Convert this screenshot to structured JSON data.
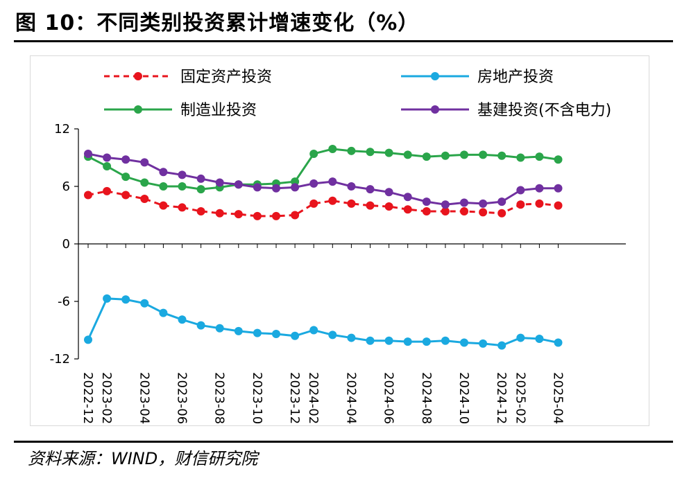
{
  "header": {
    "title": "图 10：不同类别投资累计增速变化（%）"
  },
  "footer": {
    "source": "资料来源：WIND，财信研究院"
  },
  "colors": {
    "fixed": "#e8141d",
    "realestate": "#1aa9e0",
    "manufacturing": "#2aa54a",
    "infra": "#7030a0"
  },
  "chart_data": {
    "type": "line",
    "title": "不同类别投资累计增速变化（%）",
    "xlabel": "",
    "ylabel": "",
    "ylim": [
      -12,
      12
    ],
    "yticks": [
      "12",
      "6",
      "0",
      "-6",
      "-12"
    ],
    "x": [
      "2022-12",
      "2023-02",
      "2023-03",
      "2023-04",
      "2023-05",
      "2023-06",
      "2023-07",
      "2023-08",
      "2023-09",
      "2023-10",
      "2023-11",
      "2023-12",
      "2024-02",
      "2024-03",
      "2024-04",
      "2024-05",
      "2024-06",
      "2024-07",
      "2024-08",
      "2024-09",
      "2024-10",
      "2024-11",
      "2024-12",
      "2025-02",
      "2025-03",
      "2025-04"
    ],
    "xtick_labels": [
      "2022-12",
      "2023-02",
      "2023-04",
      "2023-06",
      "2023-08",
      "2023-10",
      "2023-12",
      "2024-02",
      "2024-04",
      "2024-06",
      "2024-08",
      "2024-10",
      "2024-12",
      "2025-02",
      "2025-04"
    ],
    "series": [
      {
        "name": "固定资产投资",
        "style": "dashed",
        "color": "#e8141d",
        "values": [
          5.1,
          5.5,
          5.1,
          4.7,
          4.0,
          3.8,
          3.4,
          3.2,
          3.1,
          2.9,
          2.9,
          3.0,
          4.2,
          4.5,
          4.2,
          4.0,
          3.9,
          3.6,
          3.4,
          3.4,
          3.4,
          3.3,
          3.2,
          4.1,
          4.2,
          4.0
        ]
      },
      {
        "name": "房地产投资",
        "style": "solid",
        "color": "#1aa9e0",
        "values": [
          -10.0,
          -5.7,
          -5.8,
          -6.2,
          -7.2,
          -7.9,
          -8.5,
          -8.8,
          -9.1,
          -9.3,
          -9.4,
          -9.6,
          -9.0,
          -9.5,
          -9.8,
          -10.1,
          -10.1,
          -10.2,
          -10.2,
          -10.1,
          -10.3,
          -10.4,
          -10.6,
          -9.8,
          -9.9,
          -10.3
        ]
      },
      {
        "name": "制造业投资",
        "style": "solid",
        "color": "#2aa54a",
        "values": [
          9.1,
          8.1,
          7.0,
          6.4,
          6.0,
          6.0,
          5.7,
          5.9,
          6.2,
          6.2,
          6.3,
          6.5,
          9.4,
          9.9,
          9.7,
          9.6,
          9.5,
          9.3,
          9.1,
          9.2,
          9.3,
          9.3,
          9.2,
          9.0,
          9.1,
          8.8
        ]
      },
      {
        "name": "基建投资(不含电力)",
        "style": "solid",
        "color": "#7030a0",
        "values": [
          9.4,
          9.0,
          8.8,
          8.5,
          7.5,
          7.2,
          6.8,
          6.4,
          6.2,
          5.9,
          5.8,
          5.9,
          6.3,
          6.5,
          6.0,
          5.7,
          5.4,
          4.9,
          4.4,
          4.1,
          4.3,
          4.2,
          4.4,
          5.6,
          5.8,
          5.8
        ]
      }
    ],
    "legend": [
      {
        "label": "固定资产投资",
        "color": "#e8141d",
        "style": "dashed"
      },
      {
        "label": "房地产投资",
        "color": "#1aa9e0",
        "style": "solid"
      },
      {
        "label": "制造业投资",
        "color": "#2aa54a",
        "style": "solid"
      },
      {
        "label": "基建投资(不含电力)",
        "color": "#7030a0",
        "style": "solid"
      }
    ]
  }
}
